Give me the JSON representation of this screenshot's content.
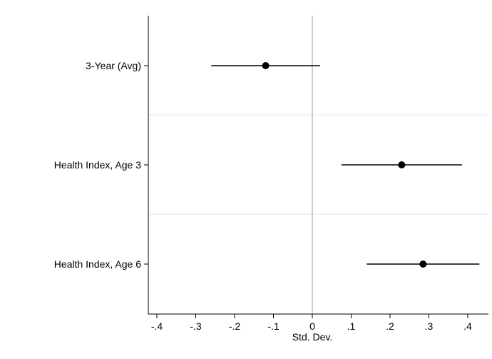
{
  "chart_data": {
    "type": "scatter",
    "title": "",
    "xlabel": "Std. Dev.",
    "ylabel": "",
    "xlim": [
      -0.42,
      0.45
    ],
    "x_ticks": [
      -0.4,
      -0.3,
      -0.2,
      -0.1,
      0,
      0.1,
      0.2,
      0.3,
      0.4
    ],
    "x_tick_labels": [
      "-.4",
      "-.3",
      "-.2",
      "-.1",
      "0",
      ".1",
      ".2",
      ".3",
      ".4"
    ],
    "categories": [
      "3-Year (Avg)",
      "Health Index, Age 3",
      "Health Index, Age 6"
    ],
    "series": [
      {
        "points": [
          {
            "label": "3-Year (Avg)",
            "estimate": -0.12,
            "ci_low": -0.26,
            "ci_high": 0.02
          },
          {
            "label": "Health Index, Age 3",
            "estimate": 0.23,
            "ci_low": 0.075,
            "ci_high": 0.385
          },
          {
            "label": "Health Index, Age 6",
            "estimate": 0.285,
            "ci_low": 0.14,
            "ci_high": 0.43
          }
        ]
      }
    ],
    "reference_line_x": 0,
    "grid": false,
    "colors": {
      "marker": "#000000",
      "ci_line": "#000000",
      "zero_line": "#999999",
      "separator": "#e3eef0",
      "axis": "#000000"
    }
  }
}
